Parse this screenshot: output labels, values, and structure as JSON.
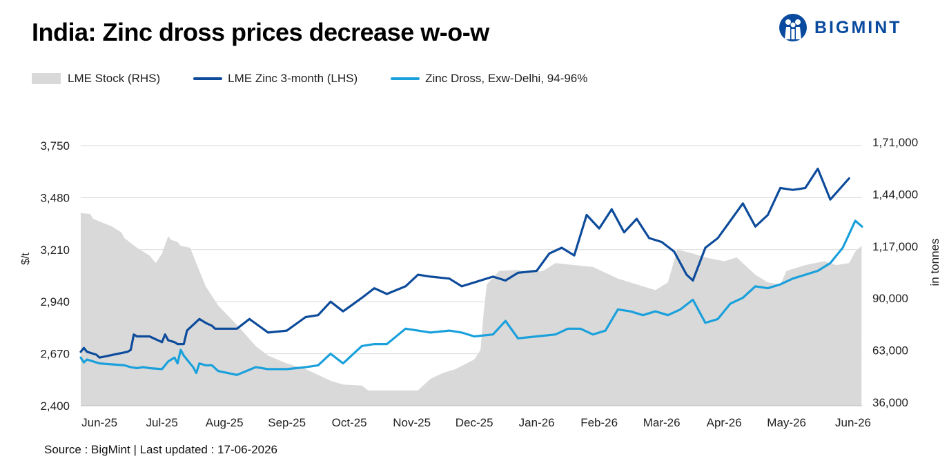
{
  "title": "India: Zinc dross prices decrease w-o-w",
  "logo": {
    "text": "BIGMINT",
    "icon": "people-circle-icon",
    "color": "#0a4a9e"
  },
  "source": "Source : BigMint | Last updated : 17-06-2026",
  "legend": [
    {
      "label": "LME Stock (RHS)",
      "kind": "area",
      "color": "#d9d9d9"
    },
    {
      "label": "LME  Zinc  3-month (LHS)",
      "kind": "line",
      "color": "#0d4b9b"
    },
    {
      "label": "Zinc Dross, Exw-Delhi, 94-96%",
      "kind": "line",
      "color": "#1aa0db"
    }
  ],
  "chart_data": {
    "type": "line",
    "x_unit": "month index (0 = start of Jun-25)",
    "x_ticks": [
      "Jun-25",
      "Jul-25",
      "Aug-25",
      "Sep-25",
      "Oct-25",
      "Nov-25",
      "Dec-25",
      "Jan-26",
      "Feb-26",
      "Mar-26",
      "Apr-26",
      "May-26",
      "Jun-26"
    ],
    "xlim": [
      0,
      12.5
    ],
    "ylabel": "$/t",
    "ylim": [
      2400,
      3750
    ],
    "yticks": [
      "2,400",
      "2,670",
      "2,940",
      "3,210",
      "3,480",
      "3,750"
    ],
    "y2label": "in tonnes",
    "y2lim": [
      36000,
      171000
    ],
    "y2ticks": [
      "36,000",
      "63,000",
      "90,000",
      "1,17,000",
      "1,44,000",
      "1,71,000"
    ],
    "grid": "horizontal",
    "legend_position": "top",
    "series": [
      {
        "name": "LME Stock (RHS)",
        "axis": "right",
        "kind": "area",
        "color": "#d9d9d9",
        "points": [
          [
            0.0,
            136000
          ],
          [
            0.15,
            135500
          ],
          [
            0.2,
            133000
          ],
          [
            0.5,
            129000
          ],
          [
            0.65,
            126000
          ],
          [
            0.7,
            123000
          ],
          [
            0.9,
            118000
          ],
          [
            1.1,
            114000
          ],
          [
            1.2,
            110000
          ],
          [
            1.3,
            115000
          ],
          [
            1.4,
            124000
          ],
          [
            1.45,
            122000
          ],
          [
            1.55,
            121000
          ],
          [
            1.6,
            119000
          ],
          [
            1.75,
            118000
          ],
          [
            2.0,
            98000
          ],
          [
            2.2,
            88000
          ],
          [
            2.5,
            78000
          ],
          [
            2.8,
            67000
          ],
          [
            3.0,
            62000
          ],
          [
            3.3,
            58000
          ],
          [
            3.6,
            55000
          ],
          [
            3.8,
            52000
          ],
          [
            4.0,
            49000
          ],
          [
            4.2,
            47000
          ],
          [
            4.5,
            46500
          ],
          [
            4.6,
            44000
          ],
          [
            5.0,
            44000
          ],
          [
            5.4,
            44000
          ],
          [
            5.6,
            50000
          ],
          [
            5.8,
            53000
          ],
          [
            6.0,
            55000
          ],
          [
            6.3,
            60000
          ],
          [
            6.4,
            65000
          ],
          [
            6.45,
            84000
          ],
          [
            6.5,
            99000
          ],
          [
            6.7,
            106000
          ],
          [
            7.0,
            106500
          ],
          [
            7.2,
            105000
          ],
          [
            7.4,
            106000
          ],
          [
            7.6,
            110000
          ],
          [
            7.9,
            109000
          ],
          [
            8.2,
            108000
          ],
          [
            8.4,
            105000
          ],
          [
            8.6,
            102000
          ],
          [
            8.9,
            99000
          ],
          [
            9.2,
            96000
          ],
          [
            9.4,
            100000
          ],
          [
            9.55,
            117000
          ],
          [
            9.8,
            115000
          ],
          [
            10.0,
            113000
          ],
          [
            10.3,
            111000
          ],
          [
            10.5,
            113000
          ],
          [
            10.8,
            104000
          ],
          [
            11.0,
            100000
          ],
          [
            11.2,
            99000
          ],
          [
            11.3,
            106000
          ],
          [
            11.6,
            109000
          ],
          [
            11.9,
            111000
          ],
          [
            12.1,
            109000
          ],
          [
            12.3,
            110000
          ],
          [
            12.4,
            116000
          ],
          [
            12.5,
            119000
          ]
        ]
      },
      {
        "name": "LME  Zinc  3-month (LHS)",
        "axis": "left",
        "kind": "line",
        "color": "#0d4b9b",
        "points": [
          [
            0.0,
            2680
          ],
          [
            0.05,
            2700
          ],
          [
            0.1,
            2680
          ],
          [
            0.25,
            2665
          ],
          [
            0.3,
            2650
          ],
          [
            0.6,
            2670
          ],
          [
            0.75,
            2680
          ],
          [
            0.8,
            2690
          ],
          [
            0.85,
            2770
          ],
          [
            0.9,
            2760
          ],
          [
            1.1,
            2760
          ],
          [
            1.3,
            2730
          ],
          [
            1.35,
            2770
          ],
          [
            1.4,
            2740
          ],
          [
            1.5,
            2730
          ],
          [
            1.55,
            2720
          ],
          [
            1.65,
            2720
          ],
          [
            1.7,
            2790
          ],
          [
            1.9,
            2850
          ],
          [
            2.0,
            2830
          ],
          [
            2.1,
            2815
          ],
          [
            2.15,
            2800
          ],
          [
            2.5,
            2800
          ],
          [
            2.7,
            2850
          ],
          [
            3.0,
            2780
          ],
          [
            3.3,
            2790
          ],
          [
            3.6,
            2860
          ],
          [
            3.8,
            2870
          ],
          [
            4.0,
            2940
          ],
          [
            4.2,
            2890
          ],
          [
            4.5,
            2960
          ],
          [
            4.7,
            3010
          ],
          [
            4.9,
            2980
          ],
          [
            5.2,
            3020
          ],
          [
            5.4,
            3080
          ],
          [
            5.6,
            3070
          ],
          [
            5.9,
            3060
          ],
          [
            6.1,
            3020
          ],
          [
            6.3,
            3040
          ],
          [
            6.6,
            3070
          ],
          [
            6.8,
            3050
          ],
          [
            7.0,
            3090
          ],
          [
            7.3,
            3100
          ],
          [
            7.5,
            3190
          ],
          [
            7.7,
            3220
          ],
          [
            7.9,
            3180
          ],
          [
            8.1,
            3390
          ],
          [
            8.3,
            3320
          ],
          [
            8.5,
            3420
          ],
          [
            8.7,
            3300
          ],
          [
            8.9,
            3370
          ],
          [
            9.1,
            3270
          ],
          [
            9.3,
            3250
          ],
          [
            9.5,
            3200
          ],
          [
            9.7,
            3080
          ],
          [
            9.8,
            3050
          ],
          [
            10.0,
            3220
          ],
          [
            10.2,
            3270
          ],
          [
            10.4,
            3360
          ],
          [
            10.6,
            3450
          ],
          [
            10.8,
            3330
          ],
          [
            11.0,
            3390
          ],
          [
            11.2,
            3530
          ],
          [
            11.4,
            3520
          ],
          [
            11.6,
            3530
          ],
          [
            11.8,
            3630
          ],
          [
            12.0,
            3470
          ],
          [
            12.3,
            3580
          ]
        ]
      },
      {
        "name": "Zinc Dross, Exw-Delhi, 94-96%",
        "axis": "left",
        "kind": "line",
        "color": "#1aa0db",
        "points": [
          [
            0.0,
            2650
          ],
          [
            0.05,
            2625
          ],
          [
            0.1,
            2640
          ],
          [
            0.2,
            2630
          ],
          [
            0.3,
            2620
          ],
          [
            0.5,
            2615
          ],
          [
            0.7,
            2610
          ],
          [
            0.8,
            2600
          ],
          [
            0.9,
            2595
          ],
          [
            1.0,
            2600
          ],
          [
            1.1,
            2595
          ],
          [
            1.3,
            2590
          ],
          [
            1.4,
            2630
          ],
          [
            1.45,
            2640
          ],
          [
            1.5,
            2650
          ],
          [
            1.55,
            2620
          ],
          [
            1.6,
            2690
          ],
          [
            1.65,
            2660
          ],
          [
            1.7,
            2640
          ],
          [
            1.75,
            2620
          ],
          [
            1.8,
            2600
          ],
          [
            1.85,
            2570
          ],
          [
            1.9,
            2620
          ],
          [
            2.0,
            2610
          ],
          [
            2.1,
            2610
          ],
          [
            2.2,
            2580
          ],
          [
            2.5,
            2560
          ],
          [
            2.8,
            2600
          ],
          [
            3.0,
            2590
          ],
          [
            3.3,
            2590
          ],
          [
            3.6,
            2600
          ],
          [
            3.8,
            2610
          ],
          [
            4.0,
            2670
          ],
          [
            4.2,
            2620
          ],
          [
            4.5,
            2710
          ],
          [
            4.7,
            2720
          ],
          [
            4.9,
            2720
          ],
          [
            5.2,
            2800
          ],
          [
            5.4,
            2790
          ],
          [
            5.6,
            2780
          ],
          [
            5.9,
            2790
          ],
          [
            6.1,
            2780
          ],
          [
            6.3,
            2760
          ],
          [
            6.6,
            2770
          ],
          [
            6.8,
            2840
          ],
          [
            7.0,
            2750
          ],
          [
            7.3,
            2760
          ],
          [
            7.6,
            2770
          ],
          [
            7.8,
            2800
          ],
          [
            8.0,
            2800
          ],
          [
            8.2,
            2770
          ],
          [
            8.4,
            2790
          ],
          [
            8.6,
            2900
          ],
          [
            8.8,
            2890
          ],
          [
            9.0,
            2870
          ],
          [
            9.2,
            2890
          ],
          [
            9.4,
            2870
          ],
          [
            9.6,
            2900
          ],
          [
            9.8,
            2950
          ],
          [
            10.0,
            2830
          ],
          [
            10.2,
            2850
          ],
          [
            10.4,
            2930
          ],
          [
            10.6,
            2960
          ],
          [
            10.8,
            3020
          ],
          [
            11.0,
            3010
          ],
          [
            11.2,
            3030
          ],
          [
            11.4,
            3060
          ],
          [
            11.6,
            3080
          ],
          [
            11.8,
            3100
          ],
          [
            12.0,
            3140
          ],
          [
            12.2,
            3220
          ],
          [
            12.4,
            3360
          ],
          [
            12.6,
            3330
          ]
        ]
      }
    ]
  }
}
